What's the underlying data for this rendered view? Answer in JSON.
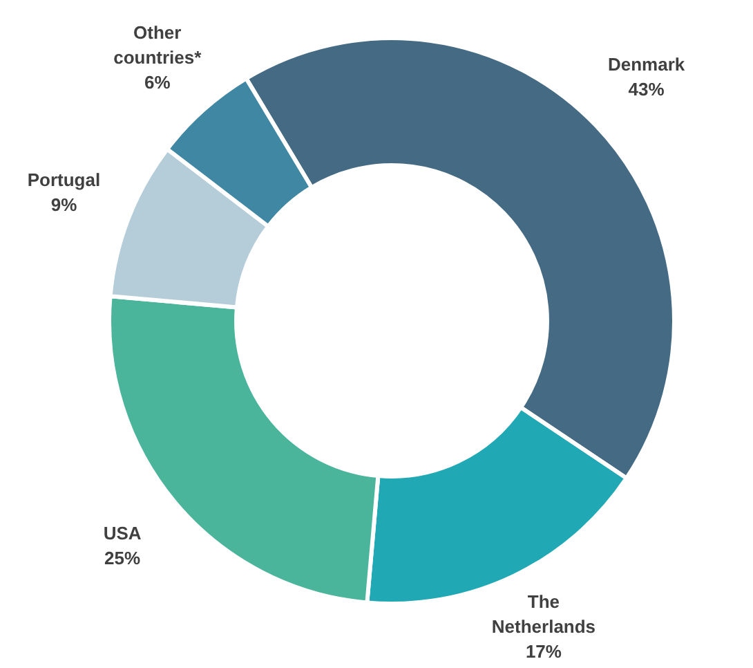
{
  "chart_data": {
    "type": "donut",
    "categories": [
      "Denmark",
      "The Netherlands",
      "USA",
      "Portugal",
      "Other countries*"
    ],
    "values": [
      43,
      17,
      25,
      9,
      6
    ],
    "colors": [
      "#456b84",
      "#20a9b4",
      "#4bb59c",
      "#b5cdd9",
      "#3f87a3"
    ],
    "value_labels": [
      "43%",
      "17%",
      "25%",
      "9%",
      "6%"
    ],
    "legend": false
  }
}
